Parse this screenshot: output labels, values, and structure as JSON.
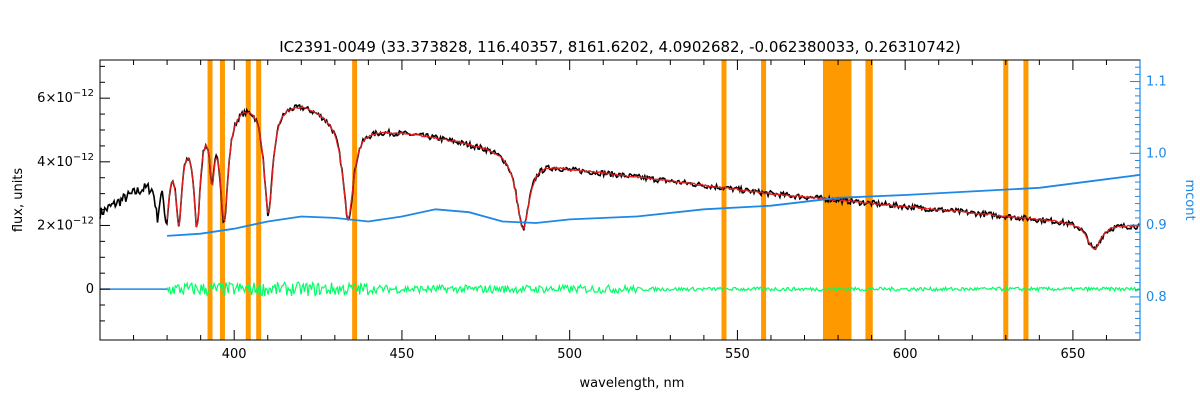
{
  "chart_data": {
    "type": "line",
    "title": "IC2391-0049   (33.373828, 116.40357, 8161.6202, 4.0902682, -0.062380033, 0.26310742)",
    "xlabel": "wavelength, nm",
    "ylabel": "flux, units",
    "y2label": "mcont",
    "xlim": [
      360,
      670
    ],
    "ylim": [
      -1.6e-12,
      7.2e-12
    ],
    "y2lim": [
      0.74,
      1.13
    ],
    "x_ticks": [
      "400",
      "450",
      "500",
      "550",
      "600",
      "650"
    ],
    "y_ticks": [
      {
        "value": 0,
        "mantissa": "0",
        "exp": ""
      },
      {
        "value": 2e-12,
        "mantissa": "2×10",
        "exp": "−12"
      },
      {
        "value": 4e-12,
        "mantissa": "4×10",
        "exp": "−12"
      },
      {
        "value": 6e-12,
        "mantissa": "6×10",
        "exp": "−12"
      }
    ],
    "y2_ticks": [
      "0.8",
      "0.9",
      "1.0",
      "1.1"
    ],
    "masked_lines": [
      392.8,
      396.5,
      404.2,
      407.3,
      435.9,
      546.0,
      557.8,
      588.9,
      589.6,
      630.0,
      636.0
    ],
    "masked_band": [
      575.5,
      584.0
    ],
    "balmer_lines": [
      {
        "center": 397.0,
        "depth": 0.62,
        "width": 1.4
      },
      {
        "center": 388.9,
        "depth": 0.62,
        "width": 1.2
      },
      {
        "center": 410.2,
        "depth": 0.6,
        "width": 1.6
      },
      {
        "center": 434.0,
        "depth": 0.58,
        "width": 2.0
      },
      {
        "center": 486.1,
        "depth": 0.55,
        "width": 2.3
      },
      {
        "center": 656.3,
        "depth": 0.4,
        "width": 2.5
      },
      {
        "center": 383.5,
        "depth": 0.55,
        "width": 1.0
      },
      {
        "center": 379.8,
        "depth": 0.45,
        "width": 0.9
      },
      {
        "center": 377.1,
        "depth": 0.35,
        "width": 0.8
      },
      {
        "center": 393.4,
        "depth": 0.35,
        "width": 0.8
      }
    ],
    "continuum": {
      "x": [
        360,
        375,
        390,
        405,
        420,
        440,
        460,
        480,
        500,
        530,
        560,
        600,
        640,
        670
      ],
      "y": [
        2.4e-12,
        3.4e-12,
        5.6e-12,
        6e-12,
        5.9e-12,
        5.1e-12,
        4.8e-12,
        4.4e-12,
        3.8e-12,
        3.4e-12,
        3e-12,
        2.6e-12,
        2.2e-12,
        2e-12
      ]
    },
    "mcont": {
      "x": [
        380,
        390,
        400,
        410,
        420,
        430,
        440,
        450,
        460,
        470,
        480,
        490,
        500,
        520,
        540,
        560,
        580,
        600,
        620,
        640,
        660,
        670
      ],
      "y": [
        0.885,
        0.888,
        0.895,
        0.905,
        0.912,
        0.91,
        0.905,
        0.912,
        0.922,
        0.918,
        0.905,
        0.903,
        0.908,
        0.912,
        0.922,
        0.927,
        0.938,
        0.942,
        0.947,
        0.952,
        0.964,
        0.97
      ]
    },
    "series": [
      {
        "color": "#000000",
        "role": "observed",
        "x_range": [
          360,
          670
        ]
      },
      {
        "color": "#e02020",
        "role": "model",
        "x_range": [
          380,
          670
        ]
      },
      {
        "color": "#00ff66",
        "role": "residual",
        "x_range": [
          380,
          670
        ]
      },
      {
        "color": "#1e88e5",
        "role": "mcont",
        "axis": "right"
      }
    ],
    "grid": false,
    "colors": {
      "mask": "#ff9900",
      "axis": "#000000",
      "right_axis": "#1e88e5"
    }
  }
}
